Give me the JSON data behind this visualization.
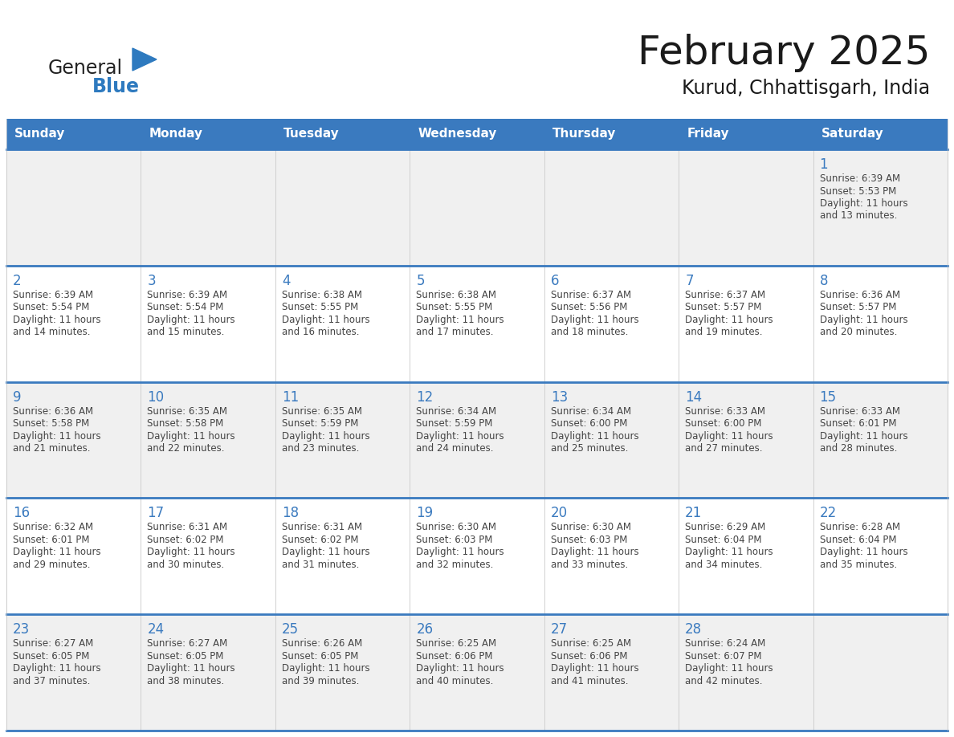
{
  "title": "February 2025",
  "subtitle": "Kurud, Chhattisgarh, India",
  "days_of_week": [
    "Sunday",
    "Monday",
    "Tuesday",
    "Wednesday",
    "Thursday",
    "Friday",
    "Saturday"
  ],
  "header_bg": "#3a7abf",
  "header_text": "#ffffff",
  "cell_bg_light": "#f0f0f0",
  "cell_bg_white": "#ffffff",
  "row_line_color": "#3a7abf",
  "col_line_color": "#c8c8c8",
  "text_color": "#444444",
  "day_num_color": "#3a7abf",
  "title_color": "#1a1a1a",
  "logo_general_color": "#222222",
  "logo_blue_color": "#2e7abf",
  "calendar_data": [
    [
      null,
      null,
      null,
      null,
      null,
      null,
      {
        "day": 1,
        "sunrise": "6:39 AM",
        "sunset": "5:53 PM",
        "daylight": "11 hours and 13 minutes."
      }
    ],
    [
      {
        "day": 2,
        "sunrise": "6:39 AM",
        "sunset": "5:54 PM",
        "daylight": "11 hours and 14 minutes."
      },
      {
        "day": 3,
        "sunrise": "6:39 AM",
        "sunset": "5:54 PM",
        "daylight": "11 hours and 15 minutes."
      },
      {
        "day": 4,
        "sunrise": "6:38 AM",
        "sunset": "5:55 PM",
        "daylight": "11 hours and 16 minutes."
      },
      {
        "day": 5,
        "sunrise": "6:38 AM",
        "sunset": "5:55 PM",
        "daylight": "11 hours and 17 minutes."
      },
      {
        "day": 6,
        "sunrise": "6:37 AM",
        "sunset": "5:56 PM",
        "daylight": "11 hours and 18 minutes."
      },
      {
        "day": 7,
        "sunrise": "6:37 AM",
        "sunset": "5:57 PM",
        "daylight": "11 hours and 19 minutes."
      },
      {
        "day": 8,
        "sunrise": "6:36 AM",
        "sunset": "5:57 PM",
        "daylight": "11 hours and 20 minutes."
      }
    ],
    [
      {
        "day": 9,
        "sunrise": "6:36 AM",
        "sunset": "5:58 PM",
        "daylight": "11 hours and 21 minutes."
      },
      {
        "day": 10,
        "sunrise": "6:35 AM",
        "sunset": "5:58 PM",
        "daylight": "11 hours and 22 minutes."
      },
      {
        "day": 11,
        "sunrise": "6:35 AM",
        "sunset": "5:59 PM",
        "daylight": "11 hours and 23 minutes."
      },
      {
        "day": 12,
        "sunrise": "6:34 AM",
        "sunset": "5:59 PM",
        "daylight": "11 hours and 24 minutes."
      },
      {
        "day": 13,
        "sunrise": "6:34 AM",
        "sunset": "6:00 PM",
        "daylight": "11 hours and 25 minutes."
      },
      {
        "day": 14,
        "sunrise": "6:33 AM",
        "sunset": "6:00 PM",
        "daylight": "11 hours and 27 minutes."
      },
      {
        "day": 15,
        "sunrise": "6:33 AM",
        "sunset": "6:01 PM",
        "daylight": "11 hours and 28 minutes."
      }
    ],
    [
      {
        "day": 16,
        "sunrise": "6:32 AM",
        "sunset": "6:01 PM",
        "daylight": "11 hours and 29 minutes."
      },
      {
        "day": 17,
        "sunrise": "6:31 AM",
        "sunset": "6:02 PM",
        "daylight": "11 hours and 30 minutes."
      },
      {
        "day": 18,
        "sunrise": "6:31 AM",
        "sunset": "6:02 PM",
        "daylight": "11 hours and 31 minutes."
      },
      {
        "day": 19,
        "sunrise": "6:30 AM",
        "sunset": "6:03 PM",
        "daylight": "11 hours and 32 minutes."
      },
      {
        "day": 20,
        "sunrise": "6:30 AM",
        "sunset": "6:03 PM",
        "daylight": "11 hours and 33 minutes."
      },
      {
        "day": 21,
        "sunrise": "6:29 AM",
        "sunset": "6:04 PM",
        "daylight": "11 hours and 34 minutes."
      },
      {
        "day": 22,
        "sunrise": "6:28 AM",
        "sunset": "6:04 PM",
        "daylight": "11 hours and 35 minutes."
      }
    ],
    [
      {
        "day": 23,
        "sunrise": "6:27 AM",
        "sunset": "6:05 PM",
        "daylight": "11 hours and 37 minutes."
      },
      {
        "day": 24,
        "sunrise": "6:27 AM",
        "sunset": "6:05 PM",
        "daylight": "11 hours and 38 minutes."
      },
      {
        "day": 25,
        "sunrise": "6:26 AM",
        "sunset": "6:05 PM",
        "daylight": "11 hours and 39 minutes."
      },
      {
        "day": 26,
        "sunrise": "6:25 AM",
        "sunset": "6:06 PM",
        "daylight": "11 hours and 40 minutes."
      },
      {
        "day": 27,
        "sunrise": "6:25 AM",
        "sunset": "6:06 PM",
        "daylight": "11 hours and 41 minutes."
      },
      {
        "day": 28,
        "sunrise": "6:24 AM",
        "sunset": "6:07 PM",
        "daylight": "11 hours and 42 minutes."
      },
      null
    ]
  ],
  "row_backgrounds": [
    "#f0f0f0",
    "#f0f0f0",
    "#f0f0f0",
    "#f0f0f0",
    "#f0f0f0"
  ]
}
